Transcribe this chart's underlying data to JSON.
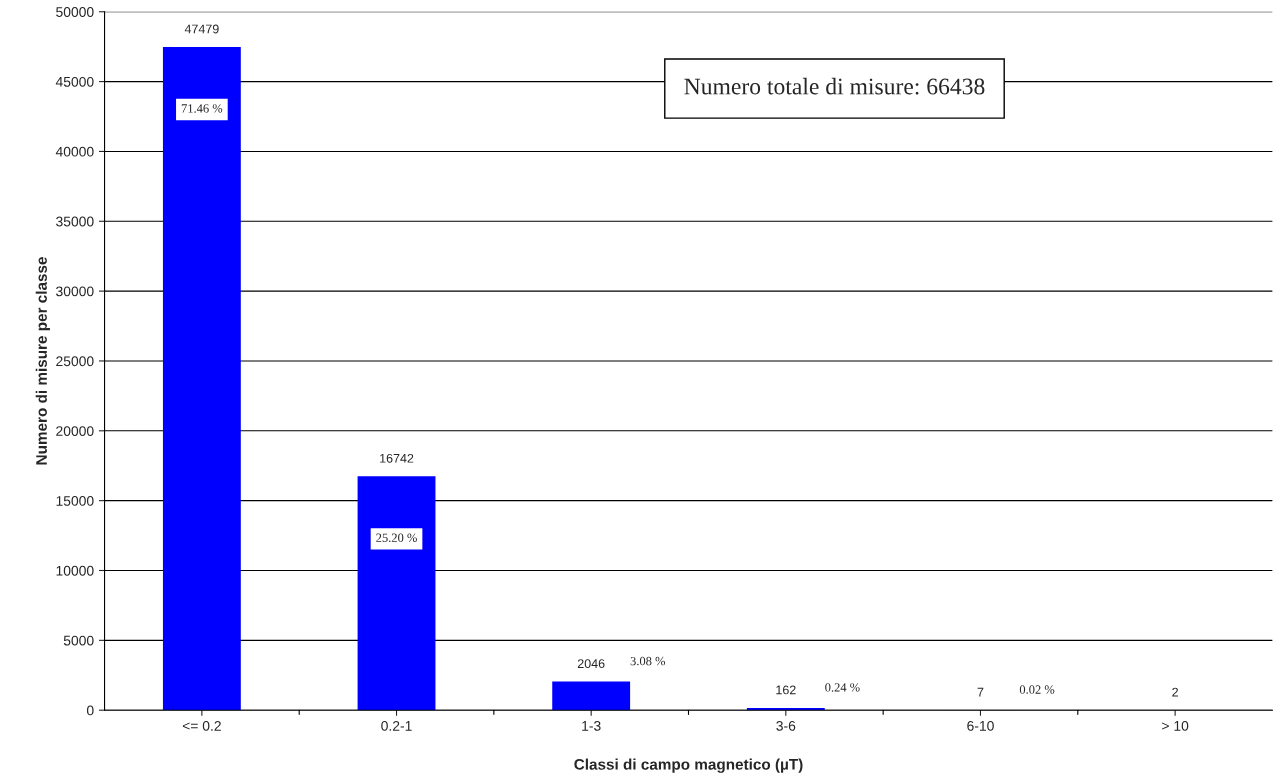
{
  "chart_data": {
    "type": "bar",
    "xlabel": "Classi di campo magnetico (µT)",
    "ylabel": "Numero di misure per classe",
    "categories": [
      "<= 0.2",
      "0.2-1",
      "1-3",
      "3-6",
      "6-10",
      "> 10"
    ],
    "values": [
      47479,
      16742,
      2046,
      162,
      7,
      2
    ],
    "color": "#0000ff",
    "data_labels": true,
    "ylim": [
      0,
      50000
    ],
    "yticks": [
      0,
      5000,
      10000,
      15000,
      20000,
      25000,
      30000,
      35000,
      40000,
      45000,
      50000
    ],
    "grid": "y",
    "annotations": [
      "71.46 %",
      "25.20 %",
      "3.08 %",
      "0.24 %",
      "0.02 %",
      "Numero totale di misure: 66438"
    ]
  }
}
